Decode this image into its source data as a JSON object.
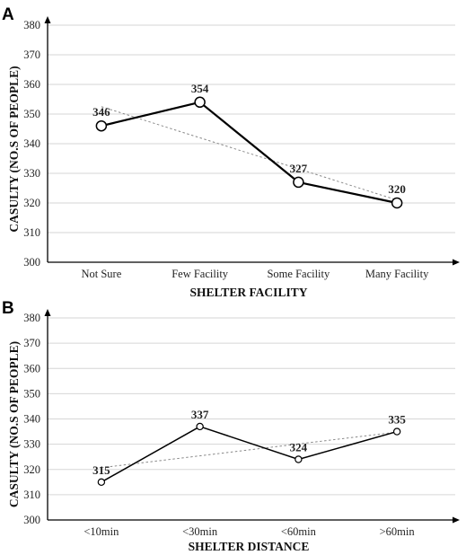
{
  "chart_data": [
    {
      "type": "line",
      "panel": "A",
      "title": "",
      "xlabel": "SHELTER FACILITY",
      "ylabel": "CASULTY (NO.S OF PEOPLE)",
      "categories": [
        "Not Sure",
        "Few Facility",
        "Some Facility",
        "Many Facility"
      ],
      "values": [
        346,
        354,
        327,
        320
      ],
      "data_labels": [
        "346",
        "354",
        "327",
        "320"
      ],
      "ylim": [
        300,
        380
      ],
      "yticks": [
        "300",
        "310",
        "320",
        "330",
        "340",
        "350",
        "360",
        "370",
        "380"
      ],
      "trendline": "linear",
      "grid": "horizontal"
    },
    {
      "type": "line",
      "panel": "B",
      "title": "",
      "xlabel": "SHELTER DISTANCE",
      "ylabel": "CASULTY (NO.S OF PEOPLE)",
      "categories": [
        "<10min",
        "<30min",
        "<60min",
        ">60min"
      ],
      "values": [
        315,
        337,
        324,
        335
      ],
      "data_labels": [
        "315",
        "337",
        "324",
        "335"
      ],
      "ylim": [
        300,
        380
      ],
      "yticks": [
        "300",
        "310",
        "320",
        "330",
        "340",
        "350",
        "360",
        "370",
        "380"
      ],
      "trendline": "linear",
      "grid": "horizontal"
    }
  ]
}
